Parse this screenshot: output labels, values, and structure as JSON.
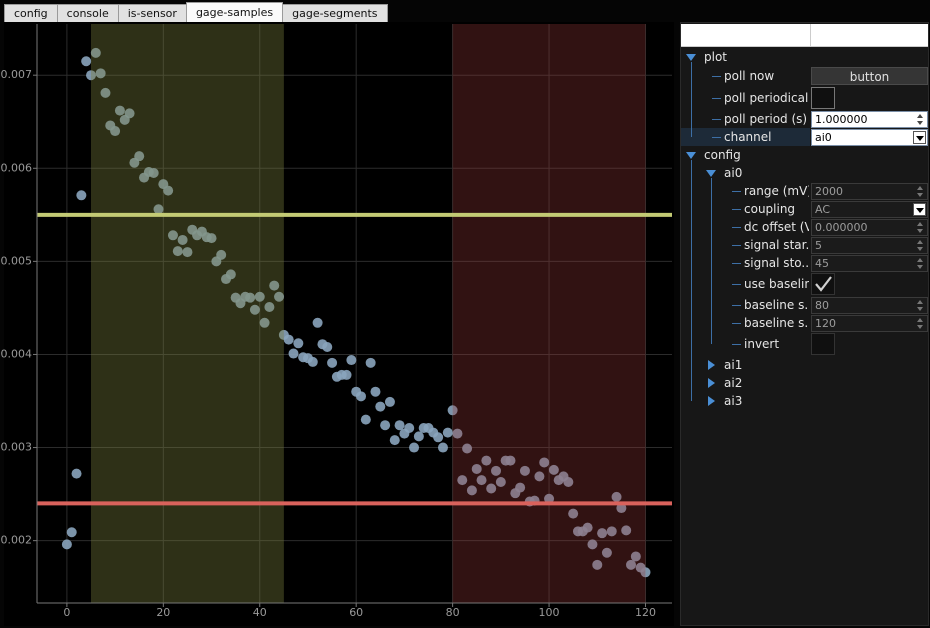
{
  "tabs": [
    {
      "label": "config"
    },
    {
      "label": "console"
    },
    {
      "label": "is-sensor"
    },
    {
      "label": "gage-samples",
      "active": true
    },
    {
      "label": "gage-segments"
    }
  ],
  "chart_data": {
    "type": "scatter",
    "color": "#8aa4bc",
    "grid": true,
    "xlim": [
      -6.2,
      125.5
    ],
    "ylim": [
      0.00133,
      0.00755
    ],
    "xticks": [
      0,
      20,
      40,
      60,
      80,
      100,
      120
    ],
    "yticks": [
      0.002,
      0.003,
      0.004,
      0.005,
      0.006,
      0.007
    ],
    "regions": [
      {
        "xlim": [
          5,
          45
        ],
        "color": "rgba(120,125,60,0.38)"
      },
      {
        "xlim": [
          80,
          120
        ],
        "color": "rgba(150,55,55,0.33)"
      }
    ],
    "hlines": [
      {
        "value": 0.0055,
        "color": "#c3ca74"
      },
      {
        "value": 0.0024,
        "color": "#d9625c"
      }
    ],
    "x": [
      0,
      1,
      2,
      3,
      4,
      5,
      6,
      7,
      8,
      9,
      10,
      11,
      12,
      13,
      14,
      15,
      16,
      17,
      18,
      19,
      20,
      21,
      22,
      23,
      24,
      25,
      26,
      27,
      28,
      29,
      30,
      31,
      32,
      33,
      34,
      35,
      36,
      37,
      38,
      39,
      40,
      41,
      42,
      43,
      44,
      45,
      46,
      47,
      48,
      49,
      50,
      51,
      52,
      53,
      54,
      55,
      56,
      57,
      58,
      59,
      60,
      61,
      62,
      63,
      64,
      65,
      66,
      67,
      68,
      69,
      70,
      71,
      72,
      73,
      74,
      75,
      76,
      77,
      78,
      79,
      80,
      81,
      82,
      83,
      84,
      85,
      86,
      87,
      88,
      89,
      90,
      91,
      92,
      93,
      94,
      95,
      96,
      97,
      98,
      99,
      100,
      101,
      102,
      103,
      104,
      105,
      106,
      107,
      108,
      109,
      110,
      111,
      112,
      113,
      114,
      115,
      116,
      117,
      118,
      119,
      120
    ],
    "values": [
      0.00196,
      0.00209,
      0.00272,
      0.00571,
      0.00715,
      0.007,
      0.00724,
      0.00702,
      0.00681,
      0.00646,
      0.0064,
      0.00662,
      0.00652,
      0.00659,
      0.00606,
      0.00613,
      0.0059,
      0.00596,
      0.00595,
      0.00556,
      0.00583,
      0.00576,
      0.00528,
      0.00511,
      0.00523,
      0.0051,
      0.00534,
      0.00528,
      0.00532,
      0.00526,
      0.00525,
      0.005,
      0.00507,
      0.00481,
      0.00486,
      0.00461,
      0.00455,
      0.00462,
      0.00461,
      0.00448,
      0.00462,
      0.00434,
      0.00451,
      0.00474,
      0.00462,
      0.00421,
      0.00416,
      0.00401,
      0.00412,
      0.00397,
      0.00396,
      0.00392,
      0.00434,
      0.00411,
      0.00408,
      0.00391,
      0.00376,
      0.00378,
      0.00378,
      0.00394,
      0.0036,
      0.00355,
      0.0033,
      0.00391,
      0.0036,
      0.00344,
      0.00324,
      0.00349,
      0.00308,
      0.00324,
      0.00315,
      0.00321,
      0.003,
      0.00312,
      0.00321,
      0.00321,
      0.00316,
      0.00311,
      0.003,
      0.00316,
      0.0034,
      0.00315,
      0.00265,
      0.00299,
      0.00254,
      0.00277,
      0.00265,
      0.00286,
      0.00256,
      0.00275,
      0.00263,
      0.00286,
      0.00286,
      0.00251,
      0.00257,
      0.00275,
      0.00242,
      0.00243,
      0.00269,
      0.00284,
      0.00245,
      0.00276,
      0.00265,
      0.00269,
      0.00263,
      0.00229,
      0.0021,
      0.0021,
      0.00214,
      0.00196,
      0.00174,
      0.00208,
      0.00187,
      0.0021,
      0.00247,
      0.00235,
      0.00211,
      0.00174,
      0.00183,
      0.00171,
      0.00166
    ]
  },
  "tree": {
    "items": [
      {
        "label": "plot",
        "children": [
          {
            "label": "poll now",
            "button": "button"
          },
          {
            "label": "poll periodically",
            "checked": false
          },
          {
            "label": "poll period (s)",
            "value": "1.000000",
            "spin": true
          },
          {
            "label": "channel",
            "value": "ai0",
            "dropdown": true,
            "selected": true
          }
        ]
      },
      {
        "label": "config",
        "children": [
          {
            "label": "ai0",
            "disabled": true,
            "children": [
              {
                "label": "range (mV)",
                "value": "2000",
                "spin": true
              },
              {
                "label": "coupling",
                "value": "AC",
                "dropdown": true
              },
              {
                "label": "dc offset (V)",
                "value": "0.000000",
                "spin": true
              },
              {
                "label": "signal star...",
                "value": "5",
                "spin": true
              },
              {
                "label": "signal sto...",
                "value": "45",
                "spin": true
              },
              {
                "label": "use baseline",
                "checked": true
              },
              {
                "label": "baseline s...",
                "value": "80",
                "spin": true
              },
              {
                "label": "baseline s...",
                "value": "120",
                "spin": true
              },
              {
                "label": "invert",
                "checked": false
              }
            ]
          },
          {
            "label": "ai1"
          },
          {
            "label": "ai2"
          },
          {
            "label": "ai3"
          }
        ]
      }
    ]
  }
}
